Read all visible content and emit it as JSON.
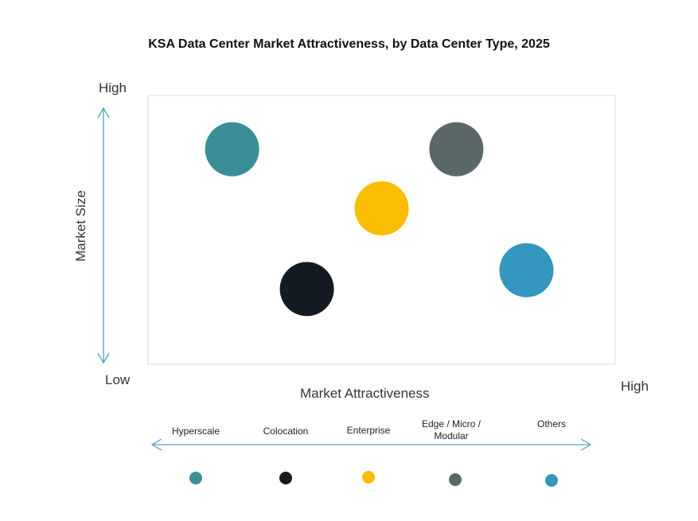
{
  "chart_data": {
    "type": "scatter",
    "title": "KSA Data Center Market Attractiveness,  by Data Center Type, 2025",
    "xlabel": "Market Attractiveness",
    "ylabel": "Market Size",
    "x_low_label": "Low",
    "x_high_label": "High",
    "y_high_label": "High",
    "xlim": [
      0,
      100
    ],
    "ylim": [
      0,
      100
    ],
    "grid": false,
    "legend_position": "bottom",
    "series": [
      {
        "name": "Hyperscale",
        "x": 18,
        "y": 80,
        "color": "#3a8e96"
      },
      {
        "name": "Colocation",
        "x": 34,
        "y": 28,
        "color": "#141a22"
      },
      {
        "name": "Enterprise",
        "x": 50,
        "y": 58,
        "color": "#fbbd00"
      },
      {
        "name": "Edge / Micro / Modular",
        "x": 66,
        "y": 80,
        "color": "#5b6767"
      },
      {
        "name": "Others",
        "x": 81,
        "y": 35,
        "color": "#3596bf"
      }
    ]
  }
}
